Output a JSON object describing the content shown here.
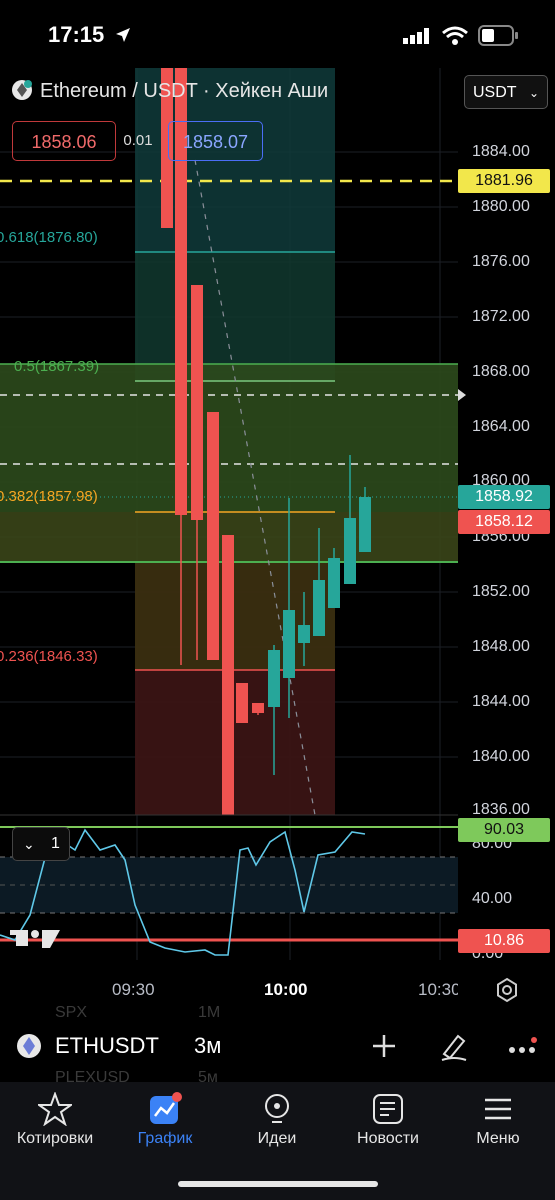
{
  "status_bar": {
    "time": "17:15"
  },
  "chart": {
    "title": "Ethereum / USDT · Хейкен Аши",
    "currency_select": "USDT",
    "bid": "1858.06",
    "spread": "0.01",
    "ask": "1858.07",
    "y_labels": [
      "1884.00",
      "1880.00",
      "1876.00",
      "1872.00",
      "1868.00",
      "1864.00",
      "1860.00",
      "1856.00",
      "1852.00",
      "1848.00",
      "1844.00",
      "1840.00",
      "1836.00"
    ],
    "alert_price": "1881.96",
    "last_price": "1858.92",
    "bid_tag": "1858.12",
    "fib_levels": [
      {
        "label": "0.618(1876.80)",
        "color": "#26a69a"
      },
      {
        "label": "0.5(1867.39)",
        "color": "#4caf50"
      },
      {
        "label": "0.382(1857.98)",
        "color": "#f5a623"
      },
      {
        "label": "0.236(1846.33)",
        "color": "#ef5350"
      }
    ],
    "x_labels": [
      "09:30",
      "10:00",
      "10:30"
    ],
    "indicator": {
      "toggle_label": "1",
      "y_labels": [
        "80.00",
        "40.00",
        "0.00"
      ],
      "upper_tag": "90.03",
      "lower_tag": "10.86"
    },
    "colors": {
      "up": "#26a69a",
      "down": "#ef5350",
      "alert": "#f2e74b"
    }
  },
  "symbol_bar": {
    "symbol": "ETHUSDT",
    "timeframe": "3м",
    "ghost_top_left": "SPX",
    "ghost_top_right": "1M",
    "ghost_bottom_left": "PLEXUSD",
    "ghost_bottom_right": "5м"
  },
  "nav": {
    "items": [
      {
        "label": "Котировки",
        "icon": "star-icon"
      },
      {
        "label": "График",
        "icon": "chart-icon"
      },
      {
        "label": "Идеи",
        "icon": "bulb-icon"
      },
      {
        "label": "Новости",
        "icon": "news-icon"
      },
      {
        "label": "Меню",
        "icon": "menu-icon"
      }
    ]
  }
}
